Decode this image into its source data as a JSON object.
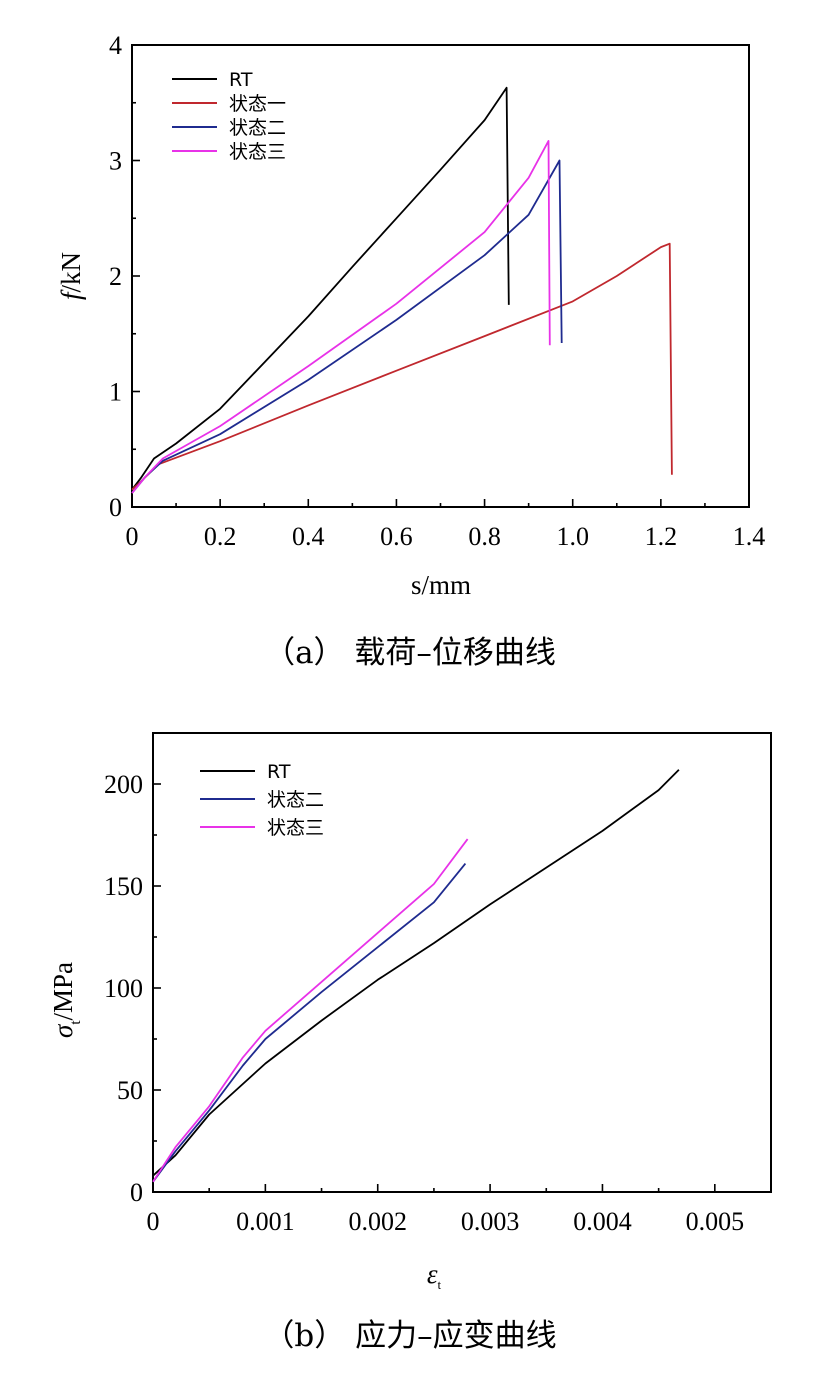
{
  "chart_data": [
    {
      "type": "line",
      "id": "a",
      "caption": "（a） 载荷–位移曲线",
      "xlabel": "s/mm",
      "ylabel_italic": "f",
      "ylabel_rest": "/kN",
      "xlim": [
        0,
        1.4
      ],
      "ylim": [
        0,
        4
      ],
      "xticks": [
        0,
        0.2,
        0.4,
        0.6,
        0.8,
        1.0,
        1.2,
        1.4
      ],
      "xtick_labels": [
        "0",
        "0.2",
        "0.4",
        "0.6",
        "0.8",
        "1.0",
        "1.2",
        "1.4"
      ],
      "yticks": [
        0,
        1,
        2,
        3,
        4
      ],
      "ytick_labels": [
        "0",
        "1",
        "2",
        "3",
        "4"
      ],
      "grid": false,
      "legend_position": "top-left",
      "series": [
        {
          "name": "RT",
          "color": "#000000",
          "points": [
            [
              0,
              0.15
            ],
            [
              0.02,
              0.25
            ],
            [
              0.05,
              0.42
            ],
            [
              0.1,
              0.55
            ],
            [
              0.2,
              0.85
            ],
            [
              0.3,
              1.25
            ],
            [
              0.4,
              1.65
            ],
            [
              0.5,
              2.08
            ],
            [
              0.6,
              2.5
            ],
            [
              0.7,
              2.92
            ],
            [
              0.8,
              3.35
            ],
            [
              0.85,
              3.63
            ],
            [
              0.855,
              1.75
            ]
          ]
        },
        {
          "name": "状态一",
          "color": "#c0282e",
          "points": [
            [
              0,
              0.15
            ],
            [
              0.02,
              0.22
            ],
            [
              0.06,
              0.37
            ],
            [
              0.2,
              0.57
            ],
            [
              0.4,
              0.88
            ],
            [
              0.6,
              1.18
            ],
            [
              0.8,
              1.48
            ],
            [
              1.0,
              1.78
            ],
            [
              1.1,
              2.0
            ],
            [
              1.2,
              2.25
            ],
            [
              1.22,
              2.28
            ],
            [
              1.225,
              0.28
            ]
          ]
        },
        {
          "name": "状态二",
          "color": "#1f2b8f",
          "points": [
            [
              0,
              0.12
            ],
            [
              0.03,
              0.26
            ],
            [
              0.07,
              0.4
            ],
            [
              0.2,
              0.63
            ],
            [
              0.4,
              1.1
            ],
            [
              0.6,
              1.62
            ],
            [
              0.8,
              2.18
            ],
            [
              0.9,
              2.53
            ],
            [
              0.97,
              3.0
            ],
            [
              0.975,
              1.42
            ]
          ]
        },
        {
          "name": "状态三",
          "color": "#e832e8",
          "points": [
            [
              0,
              0.12
            ],
            [
              0.03,
              0.26
            ],
            [
              0.07,
              0.42
            ],
            [
              0.2,
              0.7
            ],
            [
              0.4,
              1.22
            ],
            [
              0.6,
              1.76
            ],
            [
              0.8,
              2.38
            ],
            [
              0.9,
              2.85
            ],
            [
              0.945,
              3.17
            ],
            [
              0.948,
              1.4
            ]
          ]
        }
      ]
    },
    {
      "type": "line",
      "id": "b",
      "caption": "（b） 应力–应变曲线",
      "xlabel": "ε",
      "xlabel_sub": "t",
      "ylabel_main": "σ",
      "ylabel_sub": "t",
      "ylabel_rest": "/MPa",
      "xlim": [
        0,
        0.0055
      ],
      "ylim": [
        0,
        225
      ],
      "xticks": [
        0,
        0.001,
        0.002,
        0.003,
        0.004,
        0.005
      ],
      "xtick_labels": [
        "0",
        "0.001",
        "0.002",
        "0.003",
        "0.004",
        "0.005"
      ],
      "yticks": [
        0,
        50,
        100,
        150,
        200
      ],
      "ytick_labels": [
        "0",
        "50",
        "100",
        "150",
        "200"
      ],
      "grid": false,
      "legend_position": "top-left",
      "series": [
        {
          "name": "RT",
          "color": "#000000",
          "points": [
            [
              0,
              8
            ],
            [
              0.0002,
              18
            ],
            [
              0.0005,
              38
            ],
            [
              0.001,
              63
            ],
            [
              0.0015,
              84
            ],
            [
              0.002,
              104
            ],
            [
              0.0025,
              122
            ],
            [
              0.003,
              141
            ],
            [
              0.0035,
              159
            ],
            [
              0.004,
              177
            ],
            [
              0.0045,
              197
            ],
            [
              0.00468,
              207
            ]
          ]
        },
        {
          "name": "状态二",
          "color": "#1f2b8f",
          "points": [
            [
              0,
              5
            ],
            [
              0.0002,
              20
            ],
            [
              0.0005,
              40
            ],
            [
              0.0008,
              62
            ],
            [
              0.001,
              75
            ],
            [
              0.0015,
              98
            ],
            [
              0.002,
              120
            ],
            [
              0.0025,
              142
            ],
            [
              0.00278,
              161
            ]
          ]
        },
        {
          "name": "状态三",
          "color": "#e832e8",
          "points": [
            [
              0,
              5
            ],
            [
              0.0002,
              22
            ],
            [
              0.0005,
              42
            ],
            [
              0.0008,
              66
            ],
            [
              0.001,
              79
            ],
            [
              0.0015,
              103
            ],
            [
              0.002,
              127
            ],
            [
              0.0025,
              151
            ],
            [
              0.0028,
              173
            ]
          ]
        }
      ]
    }
  ]
}
